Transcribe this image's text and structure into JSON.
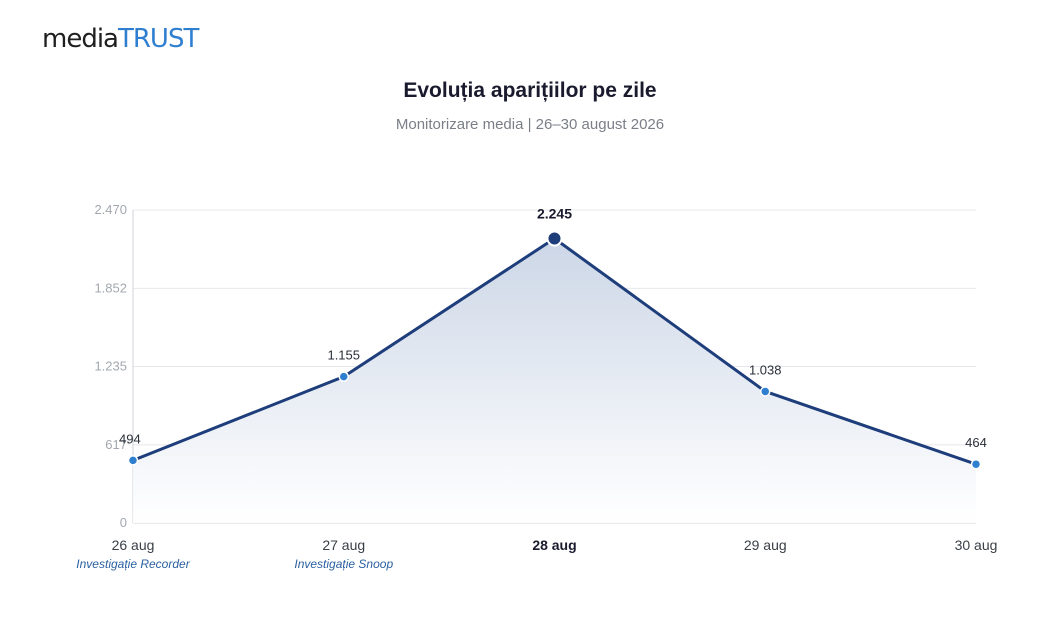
{
  "logo": {
    "part1": "media",
    "part2": "TRUST"
  },
  "chart_data": {
    "type": "area",
    "title": "Evoluția aparițiilor pe zile",
    "subtitle": "Monitorizare media | 26–30 august 2026",
    "categories": [
      "26 aug",
      "27 aug",
      "28 aug",
      "29 aug",
      "30 aug"
    ],
    "values": [
      494,
      1155,
      2245,
      1038,
      464
    ],
    "value_labels": [
      "494",
      "1.155",
      "2.245",
      "1.038",
      "464"
    ],
    "yticks": [
      0,
      617,
      1235,
      1852,
      2470
    ],
    "ytick_labels": [
      "0",
      "617",
      "1.235",
      "1.852",
      "2.470"
    ],
    "ylim": [
      0,
      2470
    ],
    "highlight_index": 2,
    "annotations": [
      {
        "index": 0,
        "text": "Investigație Recorder"
      },
      {
        "index": 1,
        "text": "Investigație Snoop"
      }
    ],
    "grid": true,
    "colors": {
      "line": "#1e3d7b",
      "point": "#2f7fd1",
      "highlight_point": "#1e3d7b",
      "fill_top": "#c9d4e5"
    }
  }
}
